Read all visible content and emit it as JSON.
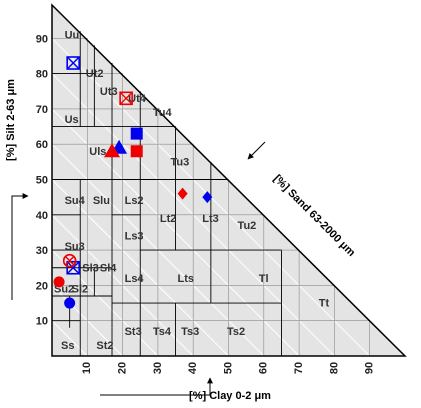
{
  "chart_data": {
    "type": "scatter",
    "subtype": "ternary-soil-texture-triangle",
    "title": "",
    "xlabel": "[%] Clay 0-2 μm",
    "ylabel": "[%] Silt 2-63 μm",
    "hypotenuse_label": "[%] Sand 63-2000 μm",
    "xlim": [
      0,
      100
    ],
    "ylim": [
      0,
      100
    ],
    "x_ticks": [
      "10",
      "20",
      "30",
      "40",
      "50",
      "60",
      "70",
      "80",
      "90"
    ],
    "y_ticks": [
      "10",
      "20",
      "30",
      "40",
      "50",
      "60",
      "70",
      "80",
      "90"
    ],
    "grid": true,
    "class_labels": [
      {
        "label": "Uu",
        "x": 3,
        "y": 90
      },
      {
        "label": "Ut2",
        "x": 9,
        "y": 79
      },
      {
        "label": "Ut3",
        "x": 13,
        "y": 74
      },
      {
        "label": "Ut4",
        "x": 21,
        "y": 72
      },
      {
        "label": "Us",
        "x": 3,
        "y": 66
      },
      {
        "label": "Tu4",
        "x": 28,
        "y": 68
      },
      {
        "label": "Uls",
        "x": 10,
        "y": 57
      },
      {
        "label": "Tu3",
        "x": 33,
        "y": 54
      },
      {
        "label": "Su4",
        "x": 3,
        "y": 43
      },
      {
        "label": "Slu",
        "x": 11,
        "y": 43
      },
      {
        "label": "Ls2",
        "x": 20,
        "y": 43
      },
      {
        "label": "Lt2",
        "x": 30,
        "y": 38
      },
      {
        "label": "Lt3",
        "x": 42,
        "y": 38
      },
      {
        "label": "Tu2",
        "x": 52,
        "y": 36
      },
      {
        "label": "Ls3",
        "x": 20,
        "y": 33
      },
      {
        "label": "Su3",
        "x": 3,
        "y": 30
      },
      {
        "label": "Sl3",
        "x": 8,
        "y": 24
      },
      {
        "label": "Sl4",
        "x": 13,
        "y": 24
      },
      {
        "label": "Ls4",
        "x": 20,
        "y": 21
      },
      {
        "label": "Lts",
        "x": 35,
        "y": 21
      },
      {
        "label": "Tl",
        "x": 58,
        "y": 21
      },
      {
        "label": "Su2",
        "x": 0,
        "y": 18
      },
      {
        "label": "Sl2",
        "x": 5,
        "y": 18
      },
      {
        "label": "Tt",
        "x": 75,
        "y": 14
      },
      {
        "label": "St3",
        "x": 20,
        "y": 6
      },
      {
        "label": "Ts4",
        "x": 28,
        "y": 6
      },
      {
        "label": "Ts3",
        "x": 36,
        "y": 6
      },
      {
        "label": "Ts2",
        "x": 49,
        "y": 6
      },
      {
        "label": "Ss",
        "x": 2,
        "y": 2
      },
      {
        "label": "St2",
        "x": 12,
        "y": 2
      }
    ],
    "series": [
      {
        "color": "#0000ee",
        "points": [
          {
            "x": 6,
            "y": 83,
            "marker": "square-open-x"
          },
          {
            "x": 24,
            "y": 63,
            "marker": "square"
          },
          {
            "x": 19,
            "y": 59,
            "marker": "triangle"
          },
          {
            "x": 44,
            "y": 45,
            "marker": "diamond"
          },
          {
            "x": 6,
            "y": 25,
            "marker": "square-open-x"
          },
          {
            "x": 5,
            "y": 15,
            "marker": "circle"
          }
        ]
      },
      {
        "color": "#ee0000",
        "points": [
          {
            "x": 21,
            "y": 73,
            "marker": "square-open-x"
          },
          {
            "x": 24,
            "y": 58,
            "marker": "square"
          },
          {
            "x": 17,
            "y": 58,
            "marker": "triangle"
          },
          {
            "x": 37,
            "y": 46,
            "marker": "diamond"
          },
          {
            "x": 5,
            "y": 27,
            "marker": "circle-open-x"
          },
          {
            "x": 2,
            "y": 21,
            "marker": "circle"
          }
        ]
      }
    ]
  }
}
